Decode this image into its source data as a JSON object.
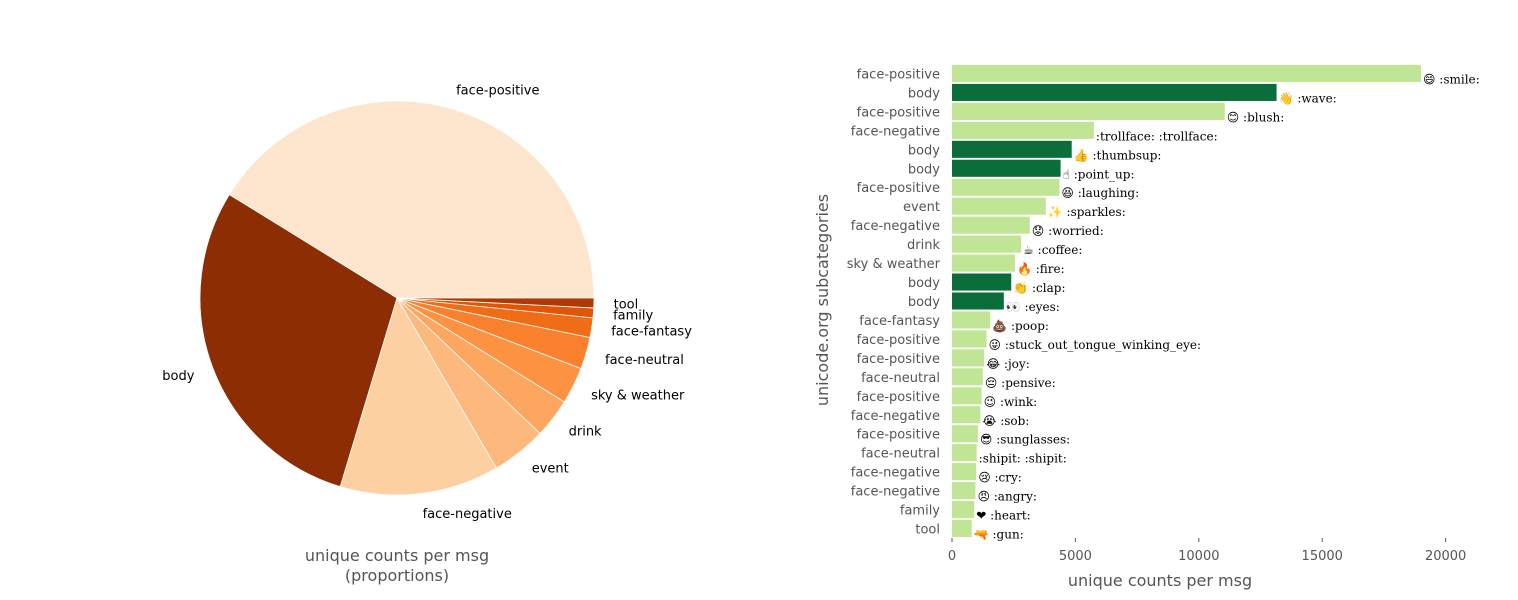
{
  "chart_data": [
    {
      "type": "pie",
      "xlabel": "unique counts per msg\n(proportions)",
      "slices": [
        {
          "label": "face-positive",
          "value": 41.0,
          "color": "#fee6ce"
        },
        {
          "label": "body",
          "value": 29.0,
          "color": "#8c2d04"
        },
        {
          "label": "face-negative",
          "value": 13.0,
          "color": "#fdd0a2"
        },
        {
          "label": "event",
          "value": 4.5,
          "color": "#fdb97d"
        },
        {
          "label": "drink",
          "value": 3.2,
          "color": "#fda660"
        },
        {
          "label": "sky & weather",
          "value": 3.0,
          "color": "#fd9243"
        },
        {
          "label": "face-neutral",
          "value": 2.6,
          "color": "#f9802d"
        },
        {
          "label": "face-fantasy",
          "value": 1.6,
          "color": "#f06d17"
        },
        {
          "label": "family",
          "value": 0.8,
          "color": "#e25508"
        },
        {
          "label": "tool",
          "value": 0.8,
          "color": "#ae3a03"
        }
      ]
    },
    {
      "type": "bar",
      "orientation": "horizontal",
      "ylabel": "unicode.org subcategories",
      "xlabel": "unique counts per msg",
      "xlim": [
        0,
        22000
      ],
      "xticks": [
        0,
        5000,
        10000,
        15000,
        20000
      ],
      "colors": {
        "body": "#0b6e3a",
        "other": "#c0e595"
      },
      "bars": [
        {
          "category": "face-positive",
          "value": 19000,
          "emoji": "😄",
          "code": ":smile:"
        },
        {
          "category": "body",
          "value": 13150,
          "emoji": "👋",
          "code": ":wave:"
        },
        {
          "category": "face-positive",
          "value": 11050,
          "emoji": "😊",
          "code": ":blush:"
        },
        {
          "category": "face-negative",
          "value": 5750,
          "emoji": "",
          "code": ":trollface: :trollface:"
        },
        {
          "category": "body",
          "value": 4850,
          "emoji": "👍",
          "code": ":thumbsup:"
        },
        {
          "category": "body",
          "value": 4400,
          "emoji": "☝",
          "code": ":point_up:"
        },
        {
          "category": "face-positive",
          "value": 4350,
          "emoji": "😆",
          "code": ":laughing:"
        },
        {
          "category": "event",
          "value": 3800,
          "emoji": "✨",
          "code": ":sparkles:"
        },
        {
          "category": "face-negative",
          "value": 3150,
          "emoji": "😟",
          "code": ":worried:"
        },
        {
          "category": "drink",
          "value": 2800,
          "emoji": "☕",
          "code": ":coffee:"
        },
        {
          "category": "sky & weather",
          "value": 2550,
          "emoji": "🔥",
          "code": ":fire:"
        },
        {
          "category": "body",
          "value": 2400,
          "emoji": "👏",
          "code": ":clap:"
        },
        {
          "category": "body",
          "value": 2100,
          "emoji": "👀",
          "code": ":eyes:"
        },
        {
          "category": "face-fantasy",
          "value": 1550,
          "emoji": "💩",
          "code": ":poop:"
        },
        {
          "category": "face-positive",
          "value": 1400,
          "emoji": "😜",
          "code": ":stuck_out_tongue_winking_eye:"
        },
        {
          "category": "face-positive",
          "value": 1300,
          "emoji": "😂",
          "code": ":joy:"
        },
        {
          "category": "face-neutral",
          "value": 1250,
          "emoji": "😔",
          "code": ":pensive:"
        },
        {
          "category": "face-positive",
          "value": 1200,
          "emoji": "😉",
          "code": ":wink:"
        },
        {
          "category": "face-negative",
          "value": 1150,
          "emoji": "😭",
          "code": ":sob:"
        },
        {
          "category": "face-positive",
          "value": 1050,
          "emoji": "😎",
          "code": ":sunglasses:"
        },
        {
          "category": "face-neutral",
          "value": 1000,
          "emoji": "",
          "code": ":shipit: :shipit:"
        },
        {
          "category": "face-negative",
          "value": 980,
          "emoji": "😢",
          "code": ":cry:"
        },
        {
          "category": "face-negative",
          "value": 950,
          "emoji": "😠",
          "code": ":angry:"
        },
        {
          "category": "family",
          "value": 900,
          "emoji": "❤",
          "code": ":heart:"
        },
        {
          "category": "tool",
          "value": 800,
          "emoji": "🔫",
          "code": ":gun:"
        }
      ]
    }
  ]
}
